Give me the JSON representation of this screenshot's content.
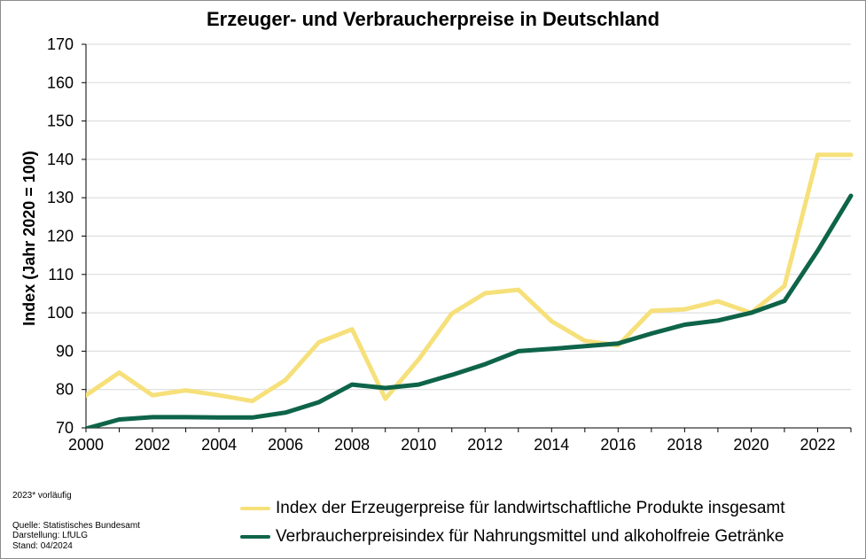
{
  "chart_data": {
    "type": "line",
    "title": "Erzeuger- und Verbraucherpreise in Deutschland",
    "xlabel": "",
    "ylabel": "Index (Jahr 2020 = 100)",
    "ylim": [
      70,
      170
    ],
    "yticks": [
      70,
      80,
      90,
      100,
      110,
      120,
      130,
      140,
      150,
      160,
      170
    ],
    "xlim": [
      2000,
      2023
    ],
    "xticks": [
      2000,
      2002,
      2004,
      2006,
      2008,
      2010,
      2012,
      2014,
      2016,
      2018,
      2020,
      2022
    ],
    "grid": true,
    "legend_position": "bottom",
    "x": [
      2000,
      2001,
      2002,
      2003,
      2004,
      2005,
      2006,
      2007,
      2008,
      2009,
      2010,
      2011,
      2012,
      2013,
      2014,
      2015,
      2016,
      2017,
      2018,
      2019,
      2020,
      2021,
      2022,
      2023
    ],
    "series": [
      {
        "name": "Index der Erzeugerpreise für landwirtschaftliche Produkte insgesamt",
        "color": "#f6e07a",
        "values": [
          78.5,
          84.4,
          78.5,
          79.8,
          78.5,
          77.0,
          82.5,
          92.3,
          95.7,
          77.6,
          87.8,
          99.8,
          105.1,
          106.0,
          97.8,
          92.7,
          91.5,
          100.5,
          100.9,
          103.0,
          100.0,
          107.0,
          141.2,
          141.2
        ]
      },
      {
        "name": "Verbraucherpreisindex für Nahrungsmittel und alkoholfreie Getränke",
        "color": "#0e6449",
        "values": [
          69.8,
          72.2,
          72.8,
          72.8,
          72.7,
          72.7,
          74.0,
          76.7,
          81.3,
          80.4,
          81.3,
          83.8,
          86.6,
          90.0,
          90.6,
          91.3,
          92.0,
          94.6,
          96.9,
          98.0,
          100.0,
          103.1,
          116.2,
          130.5
        ]
      }
    ]
  },
  "footnotes": {
    "preliminary": "2023* vorläufig",
    "source": "Quelle: Statistisches Bundesamt",
    "design": "Darstellung: LfULG",
    "date": "Stand: 04/2024"
  }
}
